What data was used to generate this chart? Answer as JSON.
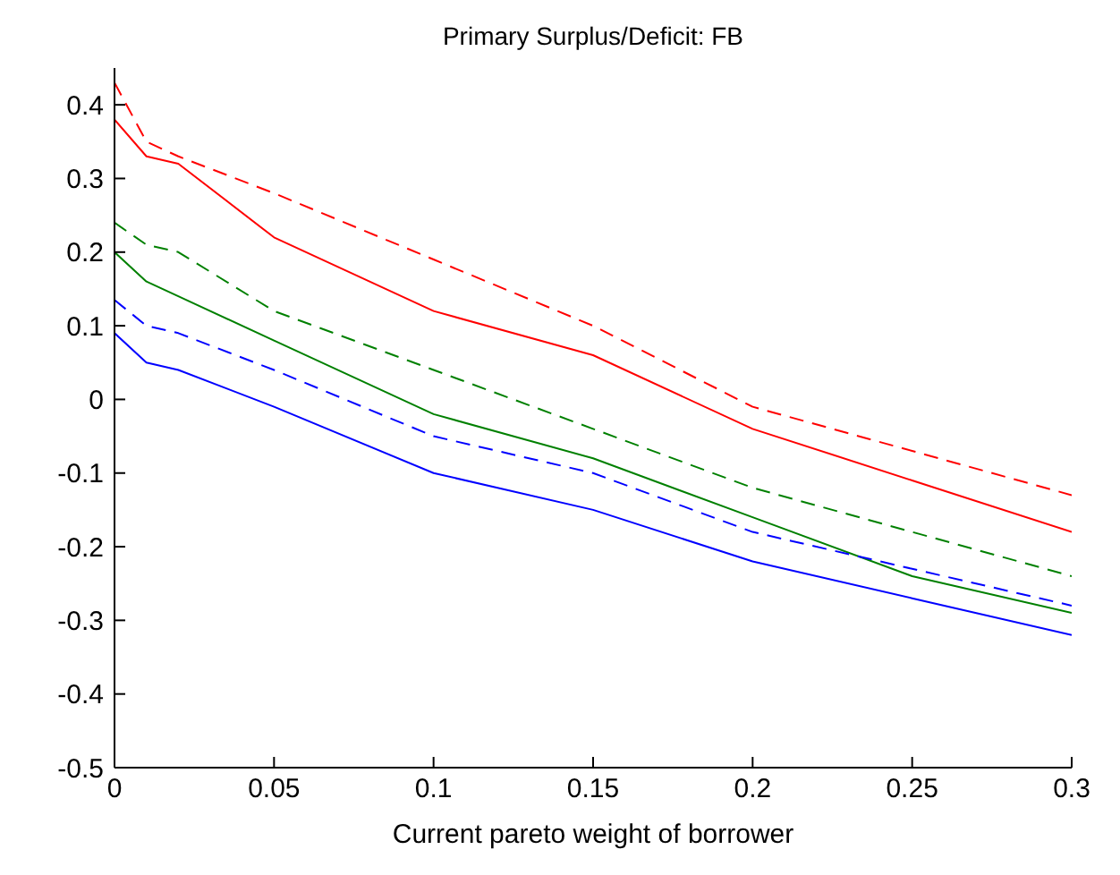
{
  "chart_data": {
    "type": "line",
    "title": "Primary Surplus/Deficit: FB",
    "xlabel": "Current pareto weight of borrower",
    "x": [
      0,
      0.01,
      0.02,
      0.05,
      0.1,
      0.15,
      0.2,
      0.25,
      0.3
    ],
    "series": [
      {
        "color": "#ff0000",
        "line_style": "dashed",
        "values": [
          0.43,
          0.35,
          0.33,
          0.28,
          0.19,
          0.1,
          -0.01,
          -0.07,
          -0.13
        ]
      },
      {
        "color": "#ff0000",
        "line_style": "solid",
        "values": [
          0.38,
          0.33,
          0.32,
          0.22,
          0.12,
          0.06,
          -0.04,
          -0.11,
          -0.18
        ]
      },
      {
        "color": "#008000",
        "line_style": "dashed",
        "values": [
          0.24,
          0.21,
          0.2,
          0.12,
          0.04,
          -0.04,
          -0.12,
          -0.18,
          -0.24
        ]
      },
      {
        "color": "#008000",
        "line_style": "solid",
        "values": [
          0.2,
          0.16,
          0.14,
          0.08,
          -0.02,
          -0.08,
          -0.16,
          -0.24,
          -0.29
        ]
      },
      {
        "color": "#0000ff",
        "line_style": "dashed",
        "values": [
          0.135,
          0.1,
          0.09,
          0.04,
          -0.05,
          -0.1,
          -0.18,
          -0.23,
          -0.28
        ]
      },
      {
        "color": "#0000ff",
        "line_style": "solid",
        "values": [
          0.09,
          0.05,
          0.04,
          -0.01,
          -0.1,
          -0.15,
          -0.22,
          -0.27,
          -0.32
        ]
      }
    ],
    "xlim": [
      0,
      0.3
    ],
    "xticks": [
      0,
      0.05,
      0.1,
      0.15,
      0.2,
      0.25,
      0.3
    ],
    "ylim": [
      -0.5,
      0.45
    ],
    "yticks": [
      -0.5,
      -0.4,
      -0.3,
      -0.2,
      -0.1,
      0,
      0.1,
      0.2,
      0.3,
      0.4
    ],
    "grid": false,
    "legend": false,
    "marker": "none"
  }
}
